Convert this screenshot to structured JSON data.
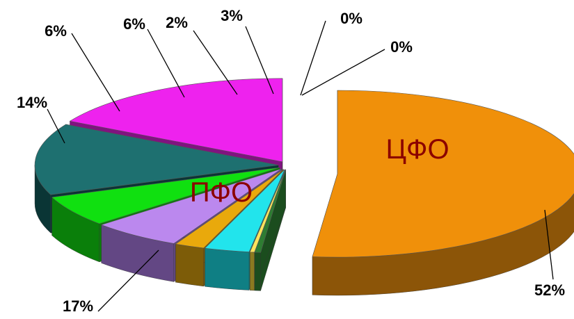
{
  "chart_data": {
    "type": "pie",
    "style": "3d-exploded",
    "slices": [
      {
        "label": "ЦФО",
        "value": 52,
        "value_label": "52%",
        "color": "#f0900a",
        "side_color": "#8c5508",
        "inner_label": "ЦФО"
      },
      {
        "label": "",
        "value": 0.4,
        "value_label": "0%",
        "color": "#2e7d32",
        "side_color": "#1b4d1e"
      },
      {
        "label": "",
        "value": 0.3,
        "value_label": "0%",
        "color": "#ffe45c",
        "side_color": "#8a7a20"
      },
      {
        "label": "",
        "value": 3,
        "value_label": "3%",
        "color": "#22e4ec",
        "side_color": "#0f7f84"
      },
      {
        "label": "",
        "value": 2,
        "value_label": "2%",
        "color": "#e9a90c",
        "side_color": "#7d5c08"
      },
      {
        "label": "",
        "value": 6,
        "value_label": "6%",
        "color": "#bb88ee",
        "side_color": "#634784"
      },
      {
        "label": "",
        "value": 6,
        "value_label": "6%",
        "color": "#10e010",
        "side_color": "#0a7f0a"
      },
      {
        "label": "",
        "value": 14,
        "value_label": "14%",
        "color": "#1e7070",
        "side_color": "#0a3535"
      },
      {
        "label": "ПФО",
        "value": 17,
        "value_label": "17%",
        "color": "#ee22ee",
        "side_color": "#801380",
        "inner_label": "ПФО"
      }
    ]
  }
}
